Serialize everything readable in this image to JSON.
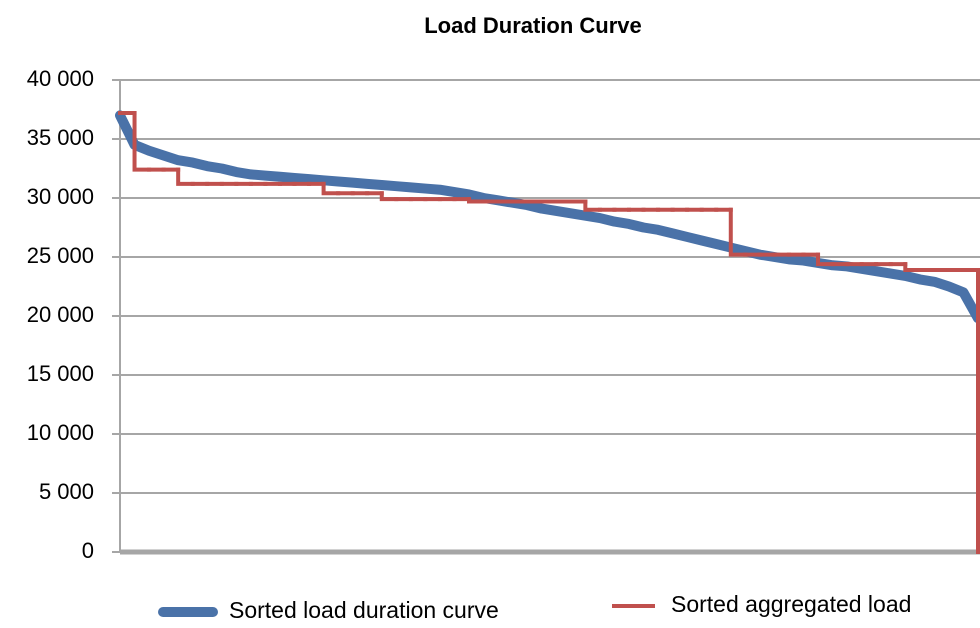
{
  "chart_data": {
    "type": "line",
    "title": "Load Duration Curve",
    "categories": [
      null,
      null,
      null,
      null,
      null,
      null,
      null,
      null,
      null,
      null,
      null,
      null,
      null,
      null,
      null,
      null,
      null,
      null,
      null,
      null,
      null,
      null,
      null,
      null,
      null,
      null,
      null,
      null,
      null,
      null,
      null,
      null,
      null,
      null,
      null,
      null,
      null,
      null,
      null,
      null,
      null,
      null,
      null,
      null,
      null,
      null,
      null,
      null,
      null,
      null,
      null,
      null,
      null,
      null,
      null,
      null,
      null,
      null,
      null,
      null
    ],
    "series": [
      {
        "name": "Sorted load duration curve",
        "color": "#4a72a8",
        "width": 10,
        "values": [
          37000,
          34500,
          34000,
          33600,
          33200,
          33000,
          32700,
          32500,
          32200,
          32000,
          31900,
          31800,
          31700,
          31600,
          31500,
          31400,
          31300,
          31200,
          31100,
          31000,
          30900,
          30800,
          30700,
          30500,
          30300,
          30000,
          29800,
          29600,
          29400,
          29100,
          28900,
          28700,
          28500,
          28300,
          28000,
          27800,
          27500,
          27300,
          27000,
          26700,
          26400,
          26100,
          25800,
          25500,
          25200,
          25000,
          24800,
          24700,
          24500,
          24300,
          24200,
          24000,
          23800,
          23600,
          23400,
          23100,
          22900,
          22500,
          22000,
          19800
        ]
      },
      {
        "name": "Sorted aggregated load",
        "color": "#c0504d",
        "width": 4,
        "step": "post",
        "values": [
          37200,
          32400,
          32400,
          32400,
          31200,
          31200,
          31200,
          31200,
          31200,
          31200,
          31200,
          31200,
          31200,
          31200,
          30400,
          30400,
          30400,
          30400,
          29900,
          29900,
          29900,
          29900,
          29900,
          29900,
          29700,
          29700,
          29700,
          29700,
          29700,
          29700,
          29700,
          29700,
          29000,
          29000,
          29000,
          29000,
          29000,
          29000,
          29000,
          29000,
          29000,
          29000,
          25200,
          25200,
          25200,
          25200,
          25200,
          25200,
          24400,
          24400,
          24400,
          24400,
          24400,
          24400,
          23900,
          23900,
          23900,
          23900,
          23900,
          0
        ]
      }
    ],
    "ylim": [
      0,
      40000
    ],
    "yticks": [
      0,
      {
        "value": 5000,
        "label": "5 000"
      },
      {
        "value": 10000,
        "label": "10 000"
      },
      {
        "value": 15000,
        "label": "15 000"
      },
      {
        "value": 20000,
        "label": "20 000"
      },
      {
        "value": 25000,
        "label": "25 000"
      },
      {
        "value": 30000,
        "label": "30 000"
      },
      {
        "value": 35000,
        "label": "35 000"
      },
      {
        "value": 40000,
        "label": "40 000"
      }
    ],
    "grid": true,
    "legend": "bottom"
  }
}
